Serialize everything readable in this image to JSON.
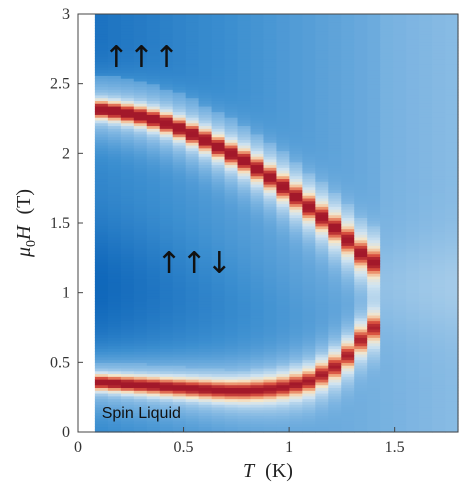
{
  "chart_data": {
    "type": "heatmap",
    "title": "",
    "xlabel": {
      "symbol": "T",
      "unit": "(K)"
    },
    "ylabel": {
      "symbol": "μ",
      "subscript": "0",
      "var": "H",
      "unit": "(T)"
    },
    "xlim": [
      0,
      1.8
    ],
    "ylim": [
      0,
      3
    ],
    "xticks": [
      0,
      0.5,
      1,
      1.5
    ],
    "xtick_labels": [
      "0",
      "0.5",
      "1",
      "1.5"
    ],
    "yticks": [
      0,
      0.5,
      1,
      1.5,
      2,
      2.5,
      3
    ],
    "ytick_labels": [
      "0",
      "0.5",
      "1",
      "1.5",
      "2",
      "2.5",
      "3"
    ],
    "colormap": [
      "#0b63b8",
      "#3c8fd0",
      "#7fb6e2",
      "#cfe3f1",
      "#f6e6c8",
      "#f0a57a",
      "#d8503f",
      "#a3182a"
    ],
    "data_x_range": [
      0.08,
      1.8
    ],
    "upper_peak_line": [
      {
        "T": 0.1,
        "H": 2.32
      },
      {
        "T": 0.2,
        "H": 2.3
      },
      {
        "T": 0.3,
        "H": 2.27
      },
      {
        "T": 0.4,
        "H": 2.23
      },
      {
        "T": 0.5,
        "H": 2.17
      },
      {
        "T": 0.6,
        "H": 2.1
      },
      {
        "T": 0.7,
        "H": 2.02
      },
      {
        "T": 0.8,
        "H": 1.94
      },
      {
        "T": 0.9,
        "H": 1.84
      },
      {
        "T": 1.0,
        "H": 1.73
      },
      {
        "T": 1.1,
        "H": 1.61
      },
      {
        "T": 1.2,
        "H": 1.49
      },
      {
        "T": 1.3,
        "H": 1.35
      },
      {
        "T": 1.38,
        "H": 1.22
      }
    ],
    "lower_peak_line": [
      {
        "T": 0.1,
        "H": 0.36
      },
      {
        "T": 0.2,
        "H": 0.35
      },
      {
        "T": 0.3,
        "H": 0.34
      },
      {
        "T": 0.4,
        "H": 0.33
      },
      {
        "T": 0.5,
        "H": 0.32
      },
      {
        "T": 0.6,
        "H": 0.31
      },
      {
        "T": 0.7,
        "H": 0.3
      },
      {
        "T": 0.8,
        "H": 0.3
      },
      {
        "T": 0.9,
        "H": 0.31
      },
      {
        "T": 1.0,
        "H": 0.33
      },
      {
        "T": 1.1,
        "H": 0.37
      },
      {
        "T": 1.2,
        "H": 0.45
      },
      {
        "T": 1.3,
        "H": 0.58
      },
      {
        "T": 1.38,
        "H": 0.75
      }
    ],
    "annotations": [
      {
        "text": "↑↑↑",
        "T": 0.3,
        "H": 2.62
      },
      {
        "text": "↑↑↓",
        "T": 0.55,
        "H": 1.14
      },
      {
        "text": "Spin Liquid",
        "T": 0.3,
        "H": 0.1
      }
    ]
  }
}
